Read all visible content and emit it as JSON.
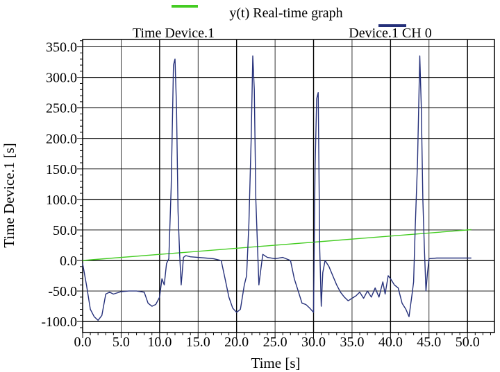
{
  "chart_data": {
    "type": "line",
    "title": "y(t) Real-time graph",
    "xlabel": "Time [s]",
    "ylabel": "Time Device.1 [s]",
    "xlim": [
      0,
      53.5
    ],
    "ylim": [
      -118,
      362
    ],
    "grid": true,
    "legend_placement": "top",
    "x_ticks": [
      "0.0",
      "5.0",
      "10.0",
      "15.0",
      "20.0",
      "25.0",
      "30.0",
      "35.0",
      "40.0",
      "45.0",
      "50.0"
    ],
    "y_ticks": [
      "350.0",
      "300.0",
      "250.0",
      "200.0",
      "150.0",
      "100.0",
      "50.0",
      "0.0",
      "-50.0",
      "-100.0"
    ],
    "series": [
      {
        "name": "Time Device.1",
        "color": "#44cc22",
        "points": [
          [
            0,
            0
          ],
          [
            50.5,
            50.5
          ]
        ]
      },
      {
        "name": "Device.1 CH 0",
        "color": "#25307a",
        "points": [
          [
            0.0,
            -5
          ],
          [
            0.5,
            -40
          ],
          [
            1.0,
            -80
          ],
          [
            1.5,
            -92
          ],
          [
            2.0,
            -98
          ],
          [
            2.5,
            -90
          ],
          [
            3.0,
            -55
          ],
          [
            3.5,
            -52
          ],
          [
            4.0,
            -55
          ],
          [
            5.0,
            -51
          ],
          [
            6.0,
            -50
          ],
          [
            7.0,
            -50
          ],
          [
            8.0,
            -52
          ],
          [
            8.5,
            -70
          ],
          [
            9.0,
            -75
          ],
          [
            9.5,
            -72
          ],
          [
            10.0,
            -60
          ],
          [
            10.3,
            -30
          ],
          [
            10.6,
            -40
          ],
          [
            10.9,
            -5
          ],
          [
            11.2,
            3
          ],
          [
            11.5,
            120
          ],
          [
            11.8,
            320
          ],
          [
            12.0,
            330
          ],
          [
            12.2,
            250
          ],
          [
            12.4,
            80
          ],
          [
            12.6,
            10
          ],
          [
            12.8,
            -40
          ],
          [
            13.1,
            5
          ],
          [
            13.4,
            8
          ],
          [
            14.0,
            6
          ],
          [
            15.0,
            5
          ],
          [
            16.0,
            4
          ],
          [
            17.0,
            3
          ],
          [
            18.0,
            0
          ],
          [
            18.5,
            -30
          ],
          [
            19.0,
            -60
          ],
          [
            19.5,
            -78
          ],
          [
            20.0,
            -85
          ],
          [
            20.5,
            -80
          ],
          [
            21.0,
            -40
          ],
          [
            21.3,
            -25
          ],
          [
            21.6,
            60
          ],
          [
            21.9,
            200
          ],
          [
            22.1,
            335
          ],
          [
            22.3,
            280
          ],
          [
            22.5,
            100
          ],
          [
            22.7,
            30
          ],
          [
            22.9,
            -40
          ],
          [
            23.1,
            -20
          ],
          [
            23.4,
            10
          ],
          [
            24.0,
            5
          ],
          [
            25.0,
            3
          ],
          [
            26.0,
            5
          ],
          [
            27.0,
            0
          ],
          [
            27.5,
            -30
          ],
          [
            28.0,
            -50
          ],
          [
            28.5,
            -70
          ],
          [
            29.0,
            -72
          ],
          [
            29.5,
            -78
          ],
          [
            30.0,
            -85
          ],
          [
            30.2,
            150
          ],
          [
            30.4,
            265
          ],
          [
            30.6,
            275
          ],
          [
            30.8,
            20
          ],
          [
            31.0,
            -75
          ],
          [
            31.2,
            -20
          ],
          [
            31.5,
            0
          ],
          [
            32.0,
            -10
          ],
          [
            32.5,
            -25
          ],
          [
            33.0,
            -40
          ],
          [
            33.5,
            -52
          ],
          [
            34.0,
            -60
          ],
          [
            34.5,
            -66
          ],
          [
            35.0,
            -62
          ],
          [
            35.5,
            -58
          ],
          [
            36.0,
            -52
          ],
          [
            36.5,
            -62
          ],
          [
            37.0,
            -50
          ],
          [
            37.5,
            -60
          ],
          [
            38.0,
            -45
          ],
          [
            38.5,
            -60
          ],
          [
            39.0,
            -35
          ],
          [
            39.3,
            -55
          ],
          [
            39.7,
            -25
          ],
          [
            40.0,
            -30
          ],
          [
            40.5,
            -40
          ],
          [
            41.0,
            -45
          ],
          [
            41.5,
            -70
          ],
          [
            42.0,
            -80
          ],
          [
            42.4,
            -92
          ],
          [
            42.8,
            -55
          ],
          [
            43.0,
            -35
          ],
          [
            43.2,
            50
          ],
          [
            43.5,
            160
          ],
          [
            43.8,
            335
          ],
          [
            44.0,
            250
          ],
          [
            44.2,
            100
          ],
          [
            44.4,
            20
          ],
          [
            44.6,
            -50
          ],
          [
            44.8,
            -20
          ],
          [
            45.0,
            3
          ],
          [
            46.0,
            4
          ],
          [
            48.0,
            4
          ],
          [
            50.5,
            4
          ]
        ]
      }
    ]
  }
}
